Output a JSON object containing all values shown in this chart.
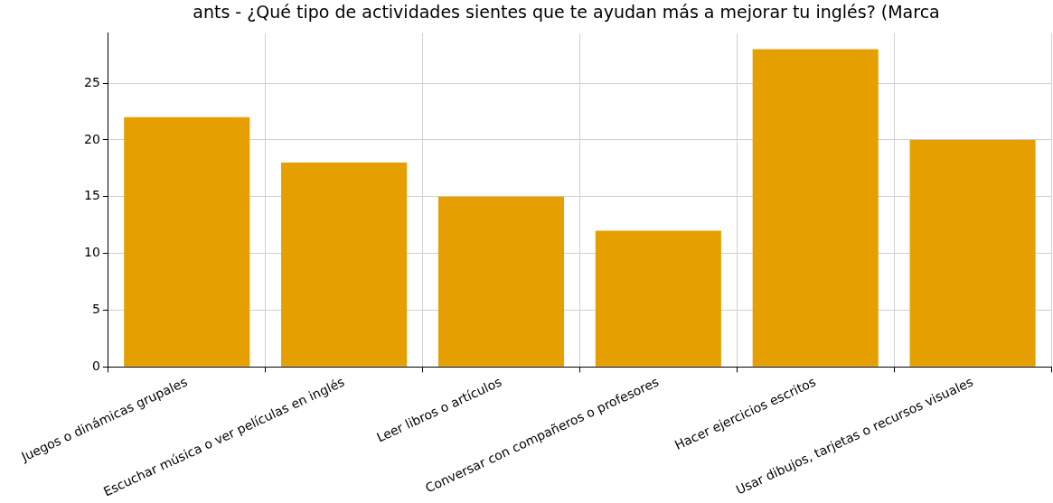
{
  "chart_data": {
    "type": "bar",
    "title": "ants - ¿Qué tipo de actividades sientes que te ayudan más a mejorar tu inglés? (Marca",
    "categories": [
      "Juegos o dinámicas grupales",
      "Escuchar música o ver películas en inglés",
      "Leer libros o artículos",
      "Conversar con compañeros o profesores",
      "Hacer ejercicios escritos",
      "Usar dibujos, tarjetas o recursos visuales"
    ],
    "values": [
      22,
      18,
      15,
      12,
      28,
      20
    ],
    "color": "#e69f00",
    "ylim": [
      0,
      29.4
    ],
    "yticks": [
      0,
      5,
      10,
      15,
      20,
      25
    ],
    "grid": true
  }
}
